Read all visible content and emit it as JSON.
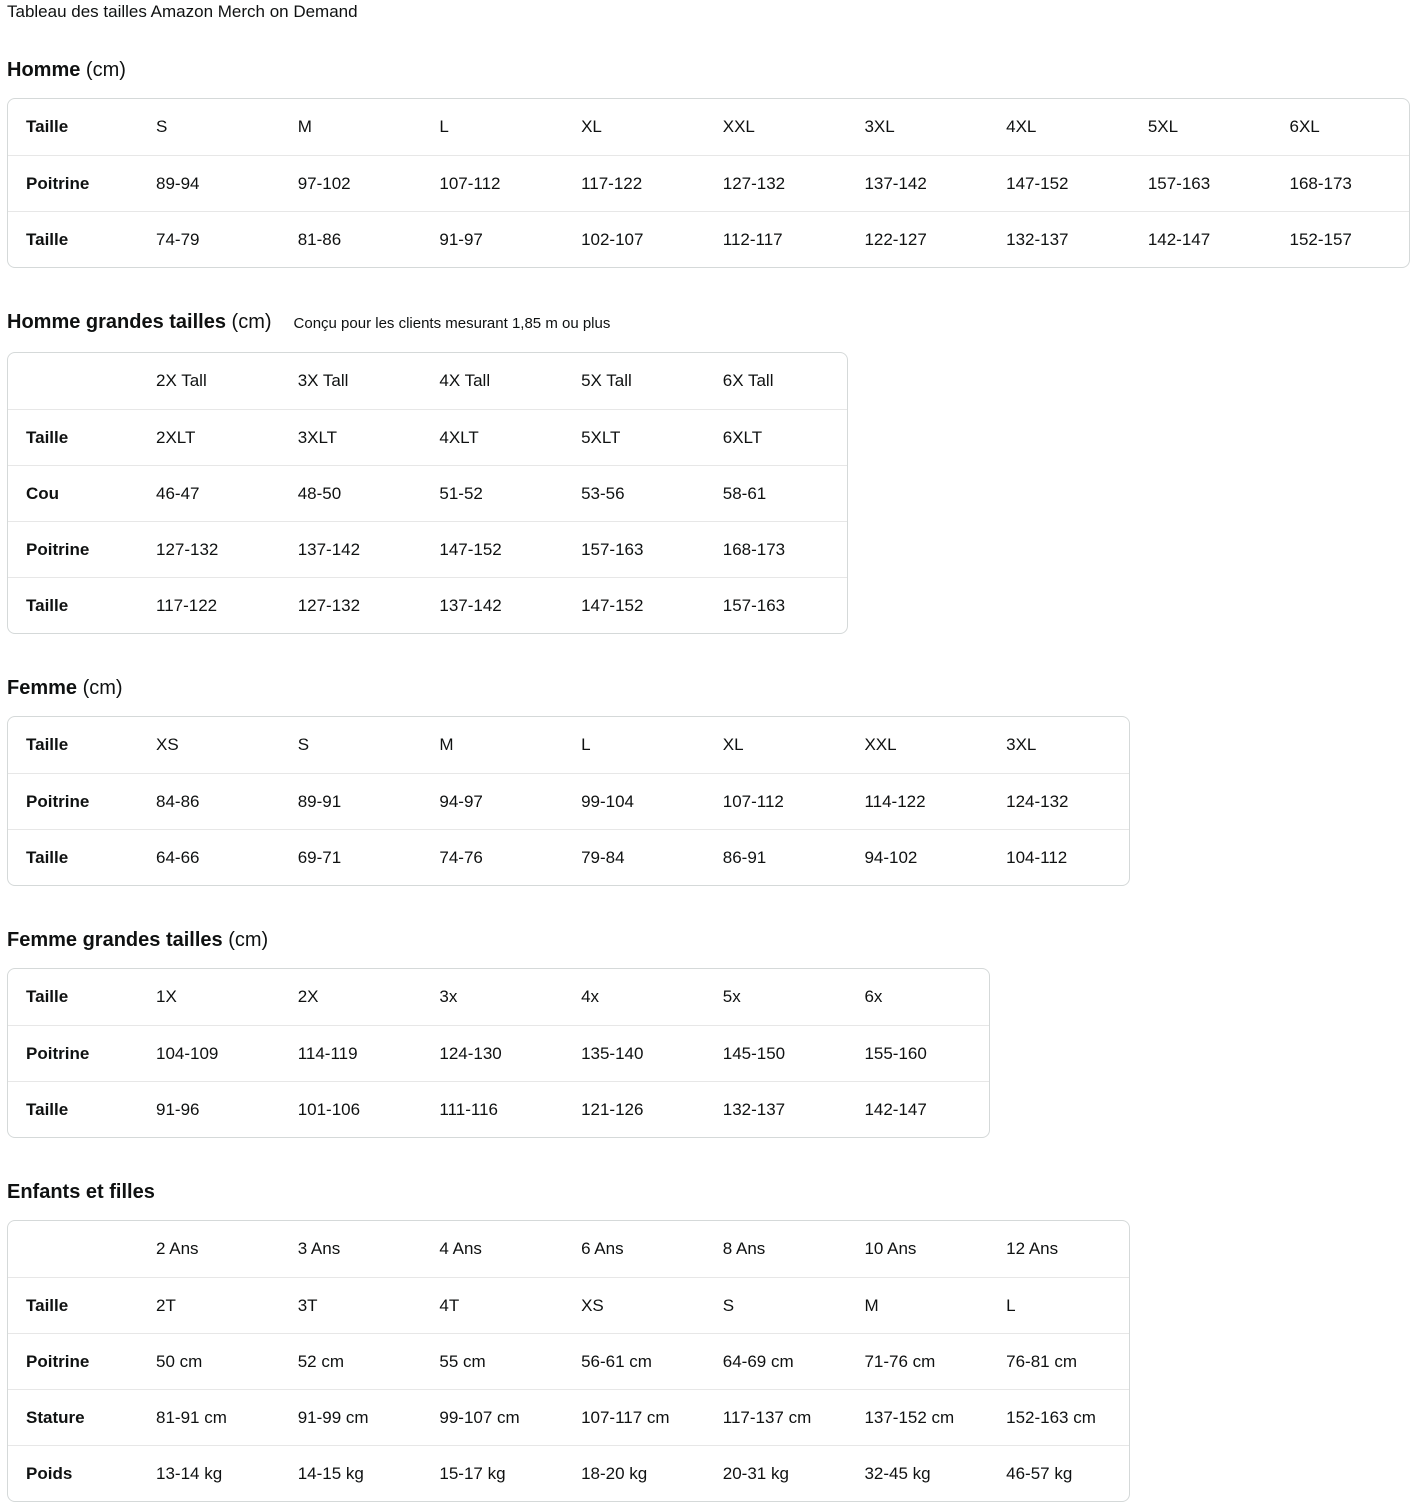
{
  "page_title": "Tableau des tailles Amazon Merch on Demand",
  "colors": {
    "text": "#0f1111",
    "table_border": "#d5d9d9",
    "row_divider": "#e7e7e7",
    "background": "#ffffff"
  },
  "sections": [
    {
      "title": "Homme",
      "unit": "(cm)",
      "note": "",
      "table": {
        "columns": [
          "Taille",
          "S",
          "M",
          "L",
          "XL",
          "XXL",
          "3XL",
          "4XL",
          "5XL",
          "6XL"
        ],
        "rows": [
          {
            "label": "Poitrine",
            "values": [
              "89-94",
              "97-102",
              "107-112",
              "117-122",
              "127-132",
              "137-142",
              "147-152",
              "157-163",
              "168-173"
            ]
          },
          {
            "label": "Taille",
            "values": [
              "74-79",
              "81-86",
              "91-97",
              "102-107",
              "112-117",
              "122-127",
              "132-137",
              "142-147",
              "152-157"
            ]
          }
        ]
      }
    },
    {
      "title": "Homme grandes tailles",
      "unit": "(cm)",
      "note": "Conçu pour les clients mesurant 1,85 m ou plus",
      "table": {
        "columns": [
          "",
          "2X Tall",
          "3X Tall",
          "4X Tall",
          "5X Tall",
          "6X Tall"
        ],
        "rows": [
          {
            "label": "Taille",
            "values": [
              "2XLT",
              "3XLT",
              "4XLT",
              "5XLT",
              "6XLT"
            ]
          },
          {
            "label": "Cou",
            "values": [
              "46-47",
              "48-50",
              "51-52",
              "53-56",
              "58-61"
            ]
          },
          {
            "label": "Poitrine",
            "values": [
              "127-132",
              "137-142",
              "147-152",
              "157-163",
              "168-173"
            ]
          },
          {
            "label": "Taille",
            "values": [
              "117-122",
              "127-132",
              "137-142",
              "147-152",
              "157-163"
            ]
          }
        ]
      }
    },
    {
      "title": "Femme",
      "unit": "(cm)",
      "note": "",
      "table": {
        "columns": [
          "Taille",
          "XS",
          "S",
          "M",
          "L",
          "XL",
          "XXL",
          "3XL"
        ],
        "rows": [
          {
            "label": "Poitrine",
            "values": [
              "84-86",
              "89-91",
              "94-97",
              "99-104",
              "107-112",
              "114-122",
              "124-132"
            ]
          },
          {
            "label": "Taille",
            "values": [
              "64-66",
              "69-71",
              "74-76",
              "79-84",
              "86-91",
              "94-102",
              "104-112"
            ]
          }
        ]
      }
    },
    {
      "title": "Femme grandes tailles",
      "unit": "(cm)",
      "note": "",
      "table": {
        "columns": [
          "Taille",
          "1X",
          "2X",
          "3x",
          "4x",
          "5x",
          "6x"
        ],
        "rows": [
          {
            "label": "Poitrine",
            "values": [
              "104-109",
              "114-119",
              "124-130",
              "135-140",
              "145-150",
              "155-160"
            ]
          },
          {
            "label": "Taille",
            "values": [
              "91-96",
              "101-106",
              "111-116",
              "121-126",
              "132-137",
              "142-147"
            ]
          }
        ]
      }
    },
    {
      "title": "Enfants et filles",
      "unit": "",
      "note": "",
      "table": {
        "columns": [
          "",
          "2 Ans",
          "3 Ans",
          "4 Ans",
          "6 Ans",
          "8 Ans",
          "10 Ans",
          "12 Ans"
        ],
        "rows": [
          {
            "label": "Taille",
            "values": [
              "2T",
              "3T",
              "4T",
              "XS",
              "S",
              "M",
              "L"
            ]
          },
          {
            "label": "Poitrine",
            "values": [
              "50 cm",
              "52 cm",
              "55 cm",
              "56-61 cm",
              "64-69 cm",
              "71-76 cm",
              "76-81 cm"
            ]
          },
          {
            "label": "Stature",
            "values": [
              "81-91 cm",
              "91-99 cm",
              "99-107 cm",
              "107-117 cm",
              "117-137 cm",
              "137-152 cm",
              "152-163 cm"
            ]
          },
          {
            "label": "Poids",
            "values": [
              "13-14 kg",
              "14-15 kg",
              "15-17 kg",
              "18-20 kg",
              "20-31 kg",
              "32-45 kg",
              "46-57 kg"
            ]
          }
        ]
      }
    }
  ]
}
